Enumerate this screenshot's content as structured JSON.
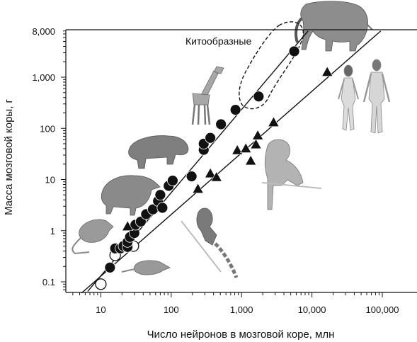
{
  "chart_data": {
    "type": "scatter",
    "title": "",
    "xlabel": "Число нейронов в мозговой коре, млн",
    "ylabel": "Масса мозговой коры, г",
    "x_scale": "log",
    "y_scale": "log",
    "xlim": [
      1,
      100000
    ],
    "ylim": [
      0.06,
      8000
    ],
    "x_ticks": [
      {
        "value": 10,
        "label": "10"
      },
      {
        "value": 100,
        "label": "100"
      },
      {
        "value": 1000,
        "label": "1,000"
      },
      {
        "value": 10000,
        "label": "10,000"
      },
      {
        "value": 100000,
        "label": "100,000"
      }
    ],
    "y_ticks": [
      {
        "value": 0.1,
        "label": "0.1"
      },
      {
        "value": 1,
        "label": "1"
      },
      {
        "value": 10,
        "label": "10"
      },
      {
        "value": 100,
        "label": "100"
      },
      {
        "value": 1000,
        "label": "1,000"
      },
      {
        "value": 8000,
        "label": "8,000"
      }
    ],
    "grid": false,
    "legend": "none",
    "annotations": [
      {
        "text": "Китообразные",
        "x": 700,
        "y": 3900
      }
    ],
    "series": [
      {
        "marker": "circle-open",
        "points": [
          [
            10,
            0.09
          ],
          [
            16,
            0.33
          ],
          [
            22,
            0.5
          ],
          [
            29,
            0.5
          ]
        ]
      },
      {
        "marker": "circle-filled",
        "points": [
          [
            13.5,
            0.19
          ],
          [
            16,
            0.45
          ],
          [
            19,
            0.45
          ],
          [
            21,
            0.5
          ],
          [
            24,
            0.48
          ],
          [
            24,
            0.6
          ],
          [
            26,
            0.75
          ],
          [
            30,
            0.9
          ],
          [
            31,
            1.3
          ],
          [
            37,
            1.5
          ],
          [
            44,
            2.1
          ],
          [
            55,
            2.6
          ],
          [
            65,
            3.8
          ],
          [
            75,
            2.8
          ],
          [
            70,
            5
          ],
          [
            92,
            7.5
          ],
          [
            105,
            9.5
          ],
          [
            195,
            11.5
          ],
          [
            290,
            38
          ],
          [
            290,
            50
          ],
          [
            360,
            65
          ],
          [
            510,
            120
          ],
          [
            820,
            230
          ],
          [
            1750,
            420
          ],
          [
            5600,
            3200
          ]
        ]
      },
      {
        "marker": "triangle-filled",
        "points": [
          [
            24,
            1.2
          ],
          [
            240,
            6.5
          ],
          [
            360,
            13
          ],
          [
            440,
            11
          ],
          [
            870,
            37
          ],
          [
            1150,
            40
          ],
          [
            1350,
            23
          ],
          [
            1600,
            48
          ],
          [
            1700,
            72
          ],
          [
            2850,
            130
          ],
          [
            16500,
            1250
          ]
        ]
      }
    ],
    "fit_lines": [
      {
        "for_marker": "circle",
        "from": [
          6.5,
          0.065
        ],
        "to": [
          8800,
          8000
        ]
      },
      {
        "for_marker": "triangle",
        "from": [
          5.3,
          0.06
        ],
        "to": [
          95000,
          8000
        ]
      }
    ],
    "group_outline": {
      "name": "Китообразные",
      "style": "dashed"
    },
    "illustrations": [
      "elephant",
      "human-female",
      "human-male",
      "giraffe",
      "capybara",
      "agouti",
      "macaque",
      "marmoset",
      "mouse",
      "shrew"
    ]
  }
}
